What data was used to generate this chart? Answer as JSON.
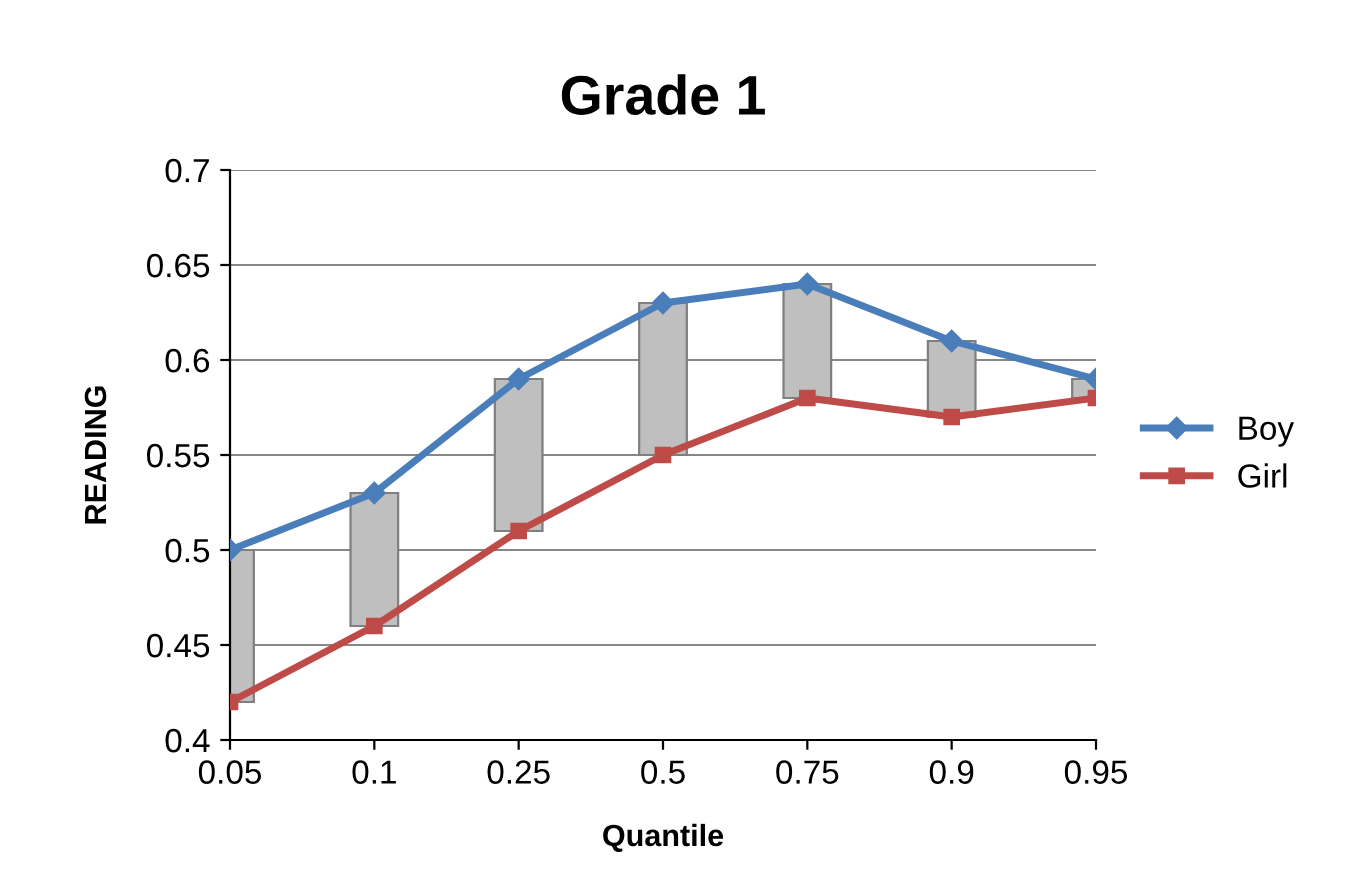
{
  "chart_data": {
    "type": "line",
    "title": "Grade 1",
    "xlabel": "Quantile",
    "ylabel": "READING",
    "categories": [
      "0.05",
      "0.1",
      "0.25",
      "0.5",
      "0.75",
      "0.9",
      "0.95"
    ],
    "series": [
      {
        "type": "bar",
        "color": "#bfbfbf",
        "base": [
          0.42,
          0.46,
          0.51,
          0.55,
          0.58,
          0.57,
          0.58
        ],
        "values": [
          0.08,
          0.07,
          0.08,
          0.08,
          0.06,
          0.04,
          0.01
        ]
      },
      {
        "name": "Boy",
        "color": "#4a7ebb",
        "marker": "diamond",
        "values": [
          0.5,
          0.53,
          0.59,
          0.63,
          0.64,
          0.61,
          0.59
        ]
      },
      {
        "name": "Girl",
        "color": "#be4b48",
        "marker": "square",
        "values": [
          0.42,
          0.46,
          0.51,
          0.55,
          0.58,
          0.57,
          0.58
        ]
      }
    ],
    "ylim": [
      0.4,
      0.7
    ],
    "yticks": [
      0.4,
      0.45,
      0.5,
      0.55,
      0.6,
      0.65,
      0.7
    ],
    "grid": "y",
    "legend": "right"
  }
}
